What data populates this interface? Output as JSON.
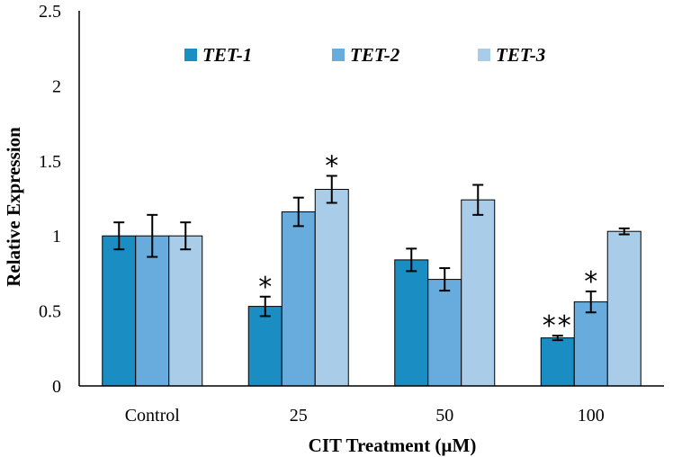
{
  "chart_data": {
    "type": "bar",
    "title": "",
    "xlabel": "CIT Treatment (µM)",
    "ylabel": "Relative Expression",
    "ylim": [
      0,
      2.5
    ],
    "yticks": [
      "0",
      "0.5",
      "1",
      "1.5",
      "2",
      "2.5"
    ],
    "grid": false,
    "legend_position": "top",
    "categories": [
      "Control",
      "25",
      "50",
      "100"
    ],
    "series": [
      {
        "name": "TET-1",
        "color": "#1a8ec2",
        "values": [
          1.0,
          0.53,
          0.84,
          0.32
        ],
        "errors": [
          0.09,
          0.065,
          0.075,
          0.015
        ],
        "significance": [
          "",
          "*",
          "",
          "**"
        ]
      },
      {
        "name": "TET-2",
        "color": "#67acdc",
        "values": [
          1.0,
          1.16,
          0.71,
          0.56
        ],
        "errors": [
          0.14,
          0.095,
          0.075,
          0.07
        ],
        "significance": [
          "",
          "",
          "",
          "*"
        ]
      },
      {
        "name": "TET-3",
        "color": "#a9cde9",
        "values": [
          1.0,
          1.31,
          1.24,
          1.03
        ],
        "errors": [
          0.09,
          0.09,
          0.1,
          0.02
        ],
        "significance": [
          "",
          "*",
          "",
          ""
        ]
      }
    ]
  }
}
